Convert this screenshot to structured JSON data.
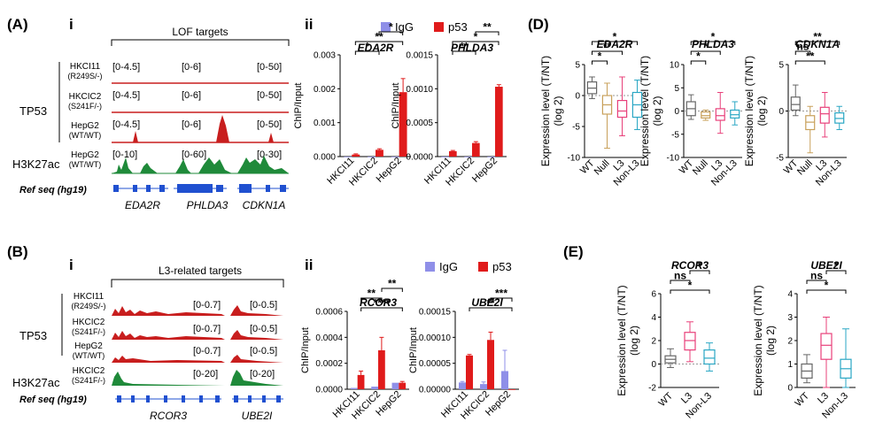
{
  "panels": {
    "A": {
      "label": "(A)",
      "sub_i": "i",
      "sub_ii": "ii",
      "bracket_title": "LOF targets"
    },
    "B": {
      "label": "(B)",
      "sub_i": "i",
      "sub_ii": "ii",
      "bracket_title": "L3-related targets"
    },
    "D": {
      "label": "(D)"
    },
    "E": {
      "label": "(E)"
    }
  },
  "tracks": {
    "group_tp53": "TP53",
    "group_h3k27ac": "H3K27ac",
    "ref_seq": "Ref seq (hg19)",
    "A_samples": [
      {
        "line1": "HKCI11",
        "line2": "(R249S/-)",
        "ranges": [
          "[0-4.5]",
          "[0-6]",
          "[0-50]"
        ]
      },
      {
        "line1": "HKCIC2",
        "line2": "(S241F/-)",
        "ranges": [
          "[0-4.5]",
          "[0-6]",
          "[0-50]"
        ]
      },
      {
        "line1": "HepG2",
        "line2": "(WT/WT)",
        "ranges": [
          "[0-4.5]",
          "[0-6]",
          "[0-50]"
        ]
      },
      {
        "line1": "HepG2",
        "line2": "(WT/WT)",
        "ranges": [
          "[0-10]",
          "[0-60]",
          "[0-30]"
        ]
      }
    ],
    "A_genes": [
      "EDA2R",
      "PHLDA3",
      "CDKN1A"
    ],
    "B_samples": [
      {
        "line1": "HKCI11",
        "line2": "(R249S/-)",
        "ranges": [
          "[0-0.7]",
          "[0-0.5]"
        ]
      },
      {
        "line1": "HKCIC2",
        "line2": "(S241F/-)",
        "ranges": [
          "[0-0.7]",
          "[0-0.5]"
        ]
      },
      {
        "line1": "HepG2",
        "line2": "(WT/WT)",
        "ranges": [
          "[0-0.7]",
          "[0-0.5]"
        ]
      },
      {
        "line1": "HKCIC2",
        "line2": "(S241F/-)",
        "ranges": [
          "[0-20]",
          "[0-20]"
        ]
      }
    ],
    "B_genes": [
      "RCOR3",
      "UBE2I"
    ]
  },
  "colors": {
    "igg": "#8f8fe8",
    "p53": "#e01b1b",
    "track_red": "#c81e1e",
    "track_green": "#1f8a3a",
    "wt": "#666666",
    "null": "#c8a05a",
    "l3": "#e8407a",
    "nonl3": "#2aa7c4"
  },
  "chart_data": [
    {
      "type": "bar",
      "id": "A-ii-EDA2R",
      "title": "EDA2R",
      "ylabel": "ChIP/Input",
      "categories": [
        "HKCI11",
        "HKCIC2",
        "HepG2"
      ],
      "series": [
        {
          "name": "IgG",
          "values": [
            0.0,
            0.0,
            0.0
          ]
        },
        {
          "name": "p53",
          "values": [
            6e-05,
            0.0002,
            0.0019
          ]
        }
      ],
      "errors": {
        "p53": [
          2e-05,
          3e-05,
          0.0004
        ]
      },
      "ylim": [
        0,
        0.003
      ],
      "yticks": [
        "0.000",
        "0.001",
        "0.002",
        "0.003"
      ],
      "legend": [
        "IgG",
        "p53"
      ],
      "annotations": [
        "*",
        "*",
        "**"
      ]
    },
    {
      "type": "bar",
      "id": "A-ii-PHLDA3",
      "title": "PHLDA3",
      "ylabel": "ChIP/Input",
      "categories": [
        "HKCI11",
        "HKCIC2",
        "HepG2"
      ],
      "series": [
        {
          "name": "IgG",
          "values": [
            0.0,
            0.0,
            0.0
          ]
        },
        {
          "name": "p53",
          "values": [
            8e-05,
            0.0002,
            0.00103
          ]
        }
      ],
      "errors": {
        "p53": [
          1e-05,
          2e-05,
          3e-05
        ]
      },
      "ylim": [
        0,
        0.0015
      ],
      "yticks": [
        "0.0000",
        "0.0005",
        "0.0010",
        "0.0015"
      ],
      "annotations": [
        "**",
        "**",
        "*"
      ]
    },
    {
      "type": "bar",
      "id": "B-ii-RCOR3",
      "title": "RCOR3",
      "ylabel": "ChIP/Input",
      "categories": [
        "HKCI11",
        "HKCIC2",
        "HepG2"
      ],
      "series": [
        {
          "name": "IgG",
          "values": [
            1e-05,
            2e-05,
            5e-05
          ]
        },
        {
          "name": "p53",
          "values": [
            0.00011,
            0.0003,
            5e-05
          ]
        }
      ],
      "errors": {
        "p53": [
          3e-05,
          0.0001,
          1e-05
        ]
      },
      "ylim": [
        0,
        0.0006
      ],
      "yticks": [
        "0.0000",
        "0.0002",
        "0.0004",
        "0.0006"
      ],
      "legend": [
        "IgG",
        "p53"
      ],
      "annotations": [
        "**",
        "**",
        "****"
      ]
    },
    {
      "type": "bar",
      "id": "B-ii-UBE2I",
      "title": "UBE2I",
      "ylabel": "ChIP/Input",
      "categories": [
        "HKCI11",
        "HKCIC2",
        "HepG2"
      ],
      "series": [
        {
          "name": "IgG",
          "values": [
            1.3e-05,
            1e-05,
            3.5e-05
          ]
        },
        {
          "name": "p53",
          "values": [
            6.5e-05,
            9.5e-05,
            0.0
          ]
        }
      ],
      "errors": {
        "p53": [
          2e-06,
          1.5e-05,
          0.0
        ],
        "IgG": [
          2e-06,
          4e-06,
          4e-05
        ]
      },
      "ylim": [
        0,
        0.00015
      ],
      "yticks": [
        "0.00000",
        "0.00005",
        "0.00010",
        "0.00015"
      ],
      "annotations": [
        "***",
        "**"
      ]
    },
    {
      "type": "box",
      "id": "D-EDA2R",
      "title": "EDA2R",
      "ylabel": "Expression level (T/NT) (log 2)",
      "categories": [
        "WT",
        "Null",
        "L3",
        "Non-L3"
      ],
      "boxes": [
        [
          -0.5,
          0.3,
          1.2,
          2.2,
          3.0
        ],
        [
          -8.5,
          -3,
          -1.5,
          0,
          2
        ],
        [
          -6.5,
          -3.5,
          -2.5,
          -0.8,
          3.0
        ],
        [
          -5.5,
          -3.5,
          -1.5,
          0.5,
          2.5
        ]
      ],
      "ylim": [
        -10,
        5
      ],
      "yticks": [
        "-10",
        "-5",
        "0",
        "5"
      ],
      "annotations": [
        "*",
        "**",
        "*"
      ]
    },
    {
      "type": "box",
      "id": "D-PHLDA3",
      "title": "PHLDA3",
      "ylabel": "Expression level (T/NT) (log 2)",
      "categories": [
        "WT",
        "Null",
        "L3",
        "Non-L3"
      ],
      "boxes": [
        [
          -1.8,
          -1.0,
          0.5,
          2.0,
          3.5
        ],
        [
          -2.0,
          -1.5,
          -1.0,
          -0.2,
          0.2
        ],
        [
          -4.8,
          -2.0,
          -1.0,
          0.5,
          4.0
        ],
        [
          -3.0,
          -1.5,
          -0.8,
          0.2,
          2.0
        ]
      ],
      "ylim": [
        -10,
        10
      ],
      "yticks": [
        "-10",
        "-5",
        "0",
        "5",
        "10"
      ],
      "annotations": [
        "*",
        "*",
        "*"
      ]
    },
    {
      "type": "box",
      "id": "D-CDKN1A",
      "title": "CDKN1A",
      "ylabel": "Expression level (T/NT) (log 2)",
      "categories": [
        "WT",
        "Null",
        "L3",
        "Non-L3"
      ],
      "boxes": [
        [
          -0.5,
          0.1,
          0.7,
          1.5,
          2.8
        ],
        [
          -4.5,
          -2.0,
          -1.2,
          -0.5,
          0.5
        ],
        [
          -2.8,
          -1.3,
          -0.3,
          0.4,
          2.0
        ],
        [
          -2.0,
          -1.3,
          -0.8,
          -0.2,
          0.5
        ]
      ],
      "ylim": [
        -5,
        5
      ],
      "yticks": [
        "-5",
        "0",
        "5"
      ],
      "annotations": [
        "ns",
        "**",
        "**"
      ]
    },
    {
      "type": "box",
      "id": "E-RCOR3",
      "title": "RCOR3",
      "ylabel": "Expression level (T/NT) (log 2)",
      "categories": [
        "WT",
        "L3",
        "Non-L3"
      ],
      "boxes": [
        [
          -0.3,
          0.1,
          0.4,
          0.7,
          1.3
        ],
        [
          0.2,
          1.2,
          2.0,
          2.7,
          3.6
        ],
        [
          -0.6,
          0.0,
          0.5,
          1.2,
          1.8
        ]
      ],
      "ylim": [
        -2,
        6
      ],
      "yticks": [
        "-2",
        "0",
        "2",
        "4",
        "6"
      ],
      "annotations": [
        "ns",
        "*",
        "*"
      ]
    },
    {
      "type": "box",
      "id": "E-UBE2I",
      "title": "UBE2I",
      "ylabel": "Expression level (T/NT) (log 2)",
      "categories": [
        "WT",
        "L3",
        "Non-L3"
      ],
      "boxes": [
        [
          0.2,
          0.4,
          0.7,
          1.0,
          1.4
        ],
        [
          0.0,
          1.2,
          1.8,
          2.3,
          3.0
        ],
        [
          0.0,
          0.4,
          0.8,
          1.2,
          2.5
        ]
      ],
      "ylim": [
        0,
        4
      ],
      "yticks": [
        "0",
        "1",
        "2",
        "3",
        "4"
      ],
      "annotations": [
        "ns",
        "*",
        "*"
      ]
    }
  ]
}
